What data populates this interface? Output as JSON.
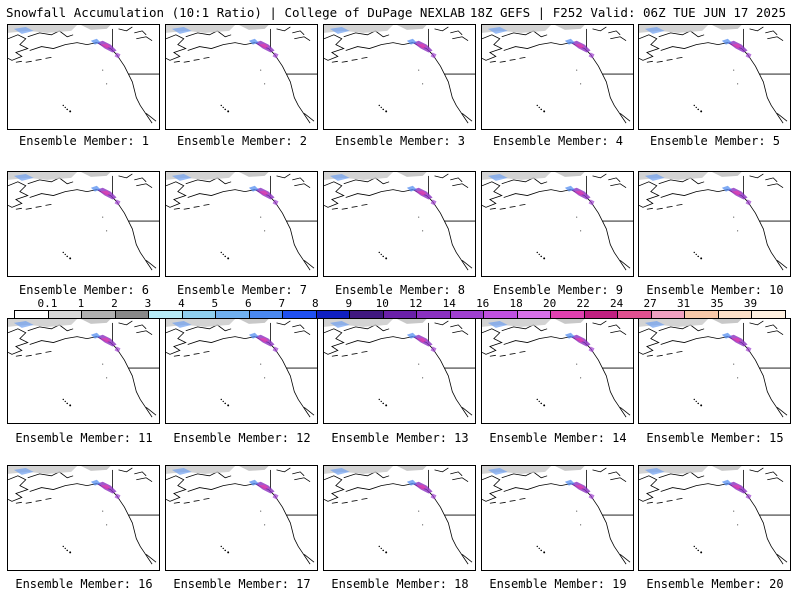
{
  "header": {
    "title_left": "Snowfall Accumulation (10:1 Ratio) | College of DuPage NEXLAB",
    "title_right": "18Z GEFS | F252 Valid: 06Z TUE JUN 17 2025"
  },
  "members": [
    {
      "label": "Ensemble Member: 1"
    },
    {
      "label": "Ensemble Member: 2"
    },
    {
      "label": "Ensemble Member: 3"
    },
    {
      "label": "Ensemble Member: 4"
    },
    {
      "label": "Ensemble Member: 5"
    },
    {
      "label": "Ensemble Member: 6"
    },
    {
      "label": "Ensemble Member: 7"
    },
    {
      "label": "Ensemble Member: 8"
    },
    {
      "label": "Ensemble Member: 9"
    },
    {
      "label": "Ensemble Member: 10"
    },
    {
      "label": "Ensemble Member: 11"
    },
    {
      "label": "Ensemble Member: 12"
    },
    {
      "label": "Ensemble Member: 13"
    },
    {
      "label": "Ensemble Member: 14"
    },
    {
      "label": "Ensemble Member: 15"
    },
    {
      "label": "Ensemble Member: 16"
    },
    {
      "label": "Ensemble Member: 17"
    },
    {
      "label": "Ensemble Member: 18"
    },
    {
      "label": "Ensemble Member: 19"
    },
    {
      "label": "Ensemble Member: 20"
    }
  ],
  "colorbar": {
    "labels": [
      "0.1",
      "1",
      "2",
      "3",
      "4",
      "5",
      "6",
      "7",
      "8",
      "9",
      "10",
      "12",
      "14",
      "16",
      "18",
      "20",
      "22",
      "24",
      "27",
      "31",
      "35",
      "39"
    ],
    "colors": [
      "#ffffff",
      "#d8d8d8",
      "#b0b0b0",
      "#888888",
      "#b8ecf8",
      "#90d0f0",
      "#70b0f0",
      "#4a88f0",
      "#2050f0",
      "#1020c0",
      "#401880",
      "#6a20a8",
      "#8a30c0",
      "#a040d0",
      "#c050e0",
      "#d870e8",
      "#e040b0",
      "#c02080",
      "#e05090",
      "#f0a0c0",
      "#f8c8a8",
      "#fde0c8",
      "#fff0e0"
    ]
  }
}
